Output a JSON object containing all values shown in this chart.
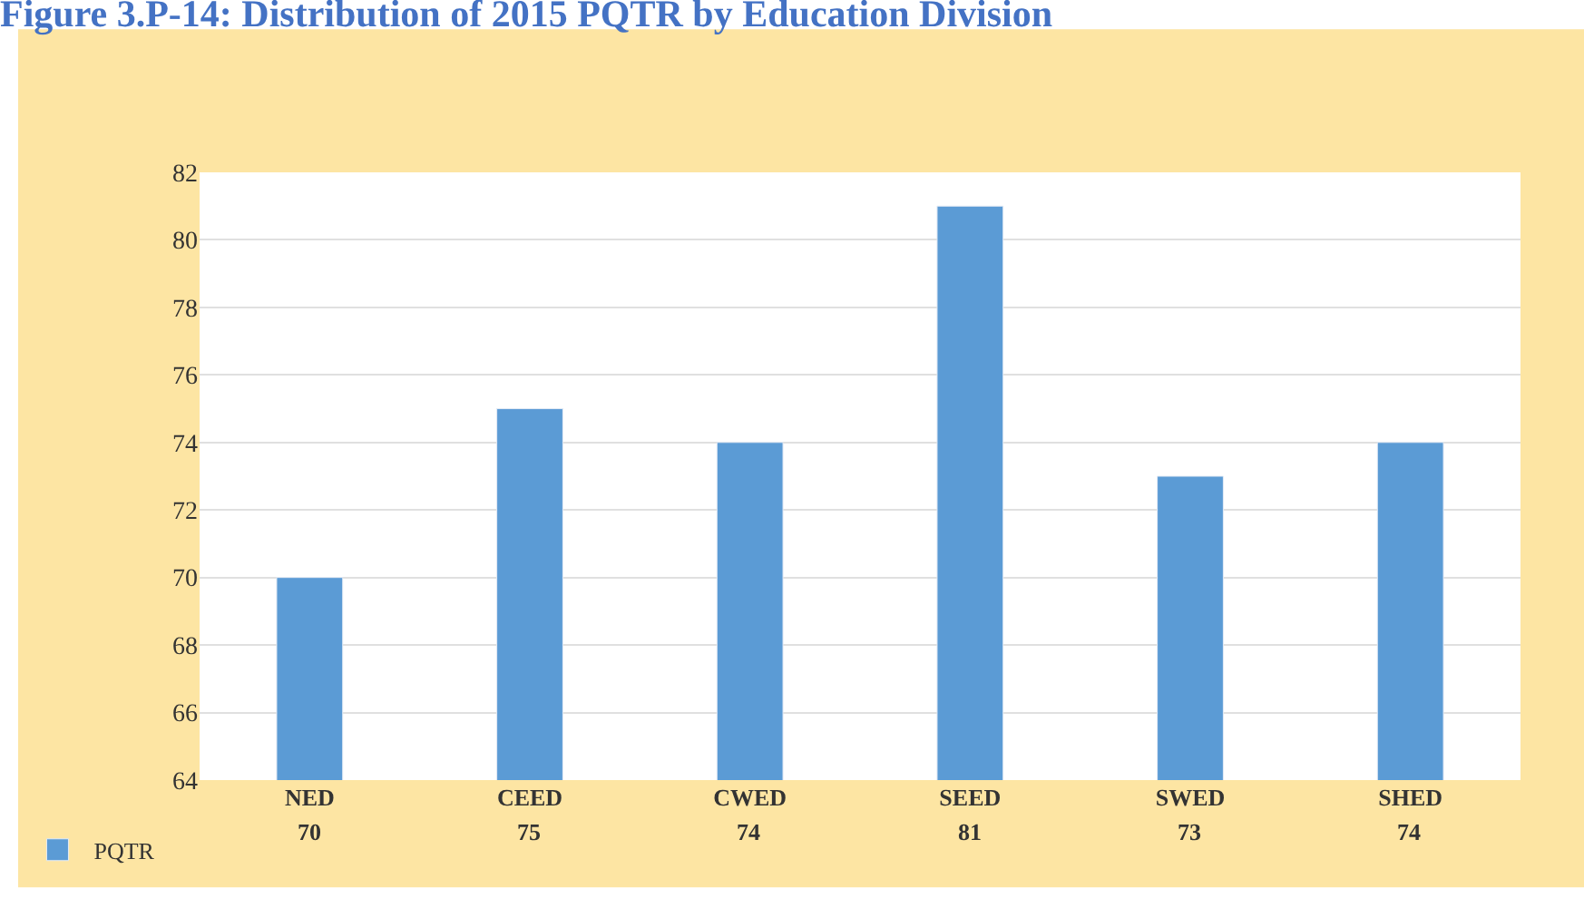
{
  "chart_data": {
    "type": "bar",
    "title": "Figure 3.P-14: Distribution of 2015 PQTR by Education Division",
    "categories": [
      "NED",
      "CEED",
      "CWED",
      "SEED",
      "SWED",
      "SHED"
    ],
    "series": [
      {
        "name": "PQTR",
        "color": "#5b9bd5",
        "values": [
          70,
          75,
          74,
          81,
          73,
          74
        ]
      }
    ],
    "ylim": [
      64,
      82
    ],
    "yticks": [
      64,
      66,
      68,
      70,
      72,
      74,
      76,
      78,
      80,
      82
    ],
    "grid": "y",
    "data_labels": true,
    "legend": "bottom left"
  }
}
